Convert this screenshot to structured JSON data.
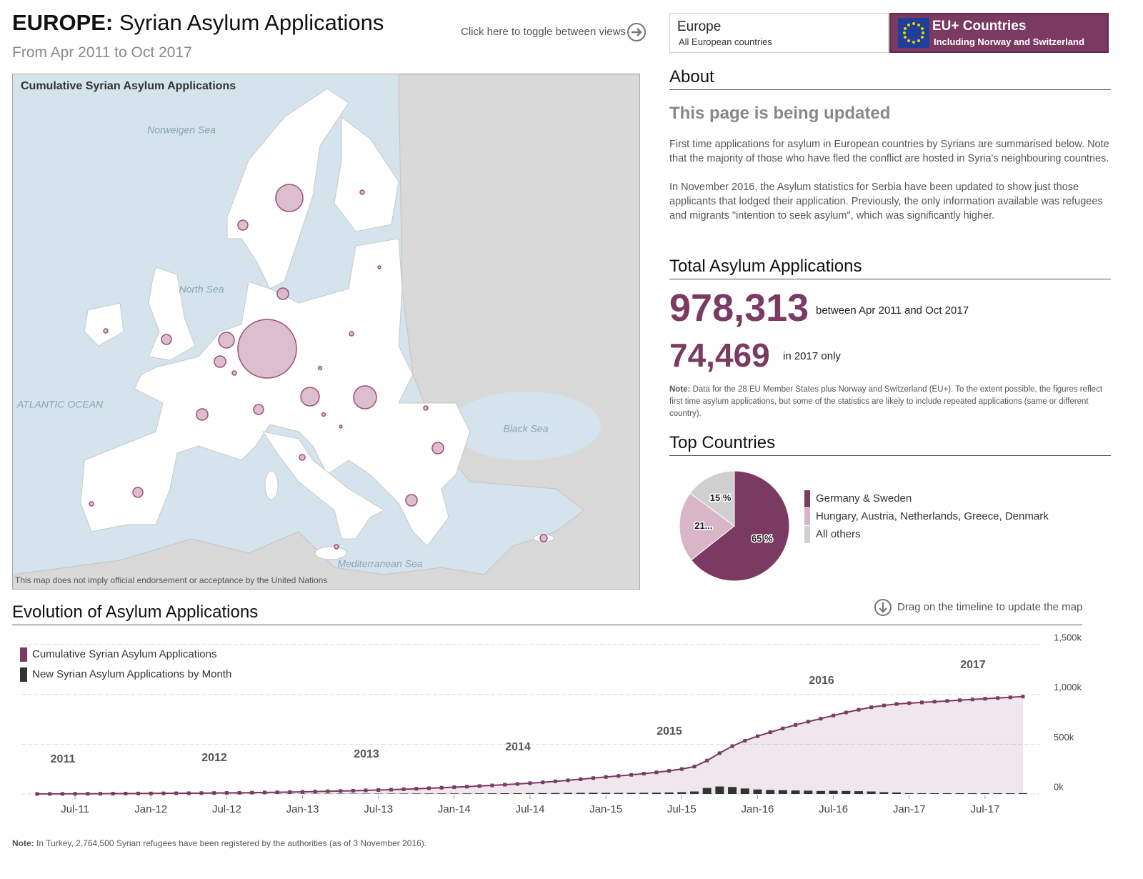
{
  "header": {
    "title_bold": "EUROPE:",
    "title": "Syrian Asylum Applications",
    "subtitle": "From Apr 2011 to Oct 2017",
    "toggle_hint": "Click here to toggle between views"
  },
  "tabs": [
    {
      "title": "Europe",
      "subtitle": "All European countries"
    },
    {
      "title": "EU+ Countries",
      "subtitle": "Including Norway and Switzerland"
    }
  ],
  "map": {
    "title": "Cumulative Syrian Asylum Applications",
    "labels": [
      "Norweigen Sea",
      "North Sea",
      "ATLANTIC OCEAN",
      "Black Sea",
      "Mediterranean Sea"
    ],
    "disclaimer": "This map does not imply official endorsement or acceptance by the United Nations",
    "bubble_values": [
      520000,
      112000,
      79000,
      52000,
      37000,
      20000,
      20000,
      15000,
      20000,
      15000,
      15000,
      15000,
      20000,
      20000,
      5000,
      7700,
      2800,
      2800,
      2800,
      2800,
      2800,
      2800,
      1900,
      2800,
      1900,
      1200,
      1200
    ]
  },
  "about": {
    "heading": "About",
    "subheading": "This page is being updated",
    "paragraphs": [
      "First time applications for asylum in European countries by Syrians are summarised below. Note that the majority of those who have fled the conflict are hosted in Syria's neighbouring countries.",
      "In November 2016, the Asylum statistics for Serbia have been updated to show just those applicants that lodged their application. Previously, the only information available was refugees and migrants \"intention to seek asylum\", which was significantly higher."
    ]
  },
  "totals": {
    "heading": "Total Asylum Applications",
    "total": "978,313",
    "total_label": "between Apr 2011 and Oct 2017",
    "year_total": "74,469",
    "year_label": "in 2017 only",
    "note_label": "Note:",
    "note": "Data for the 28 EU Member States plus Norway and Switzerland (EU+). To the extent possible, the figures reflect first time asylum applications, but some of the statistics are likely to include repeated applications (same or different country)."
  },
  "timeline_hint": "Drag on the timeline to update the map",
  "footer": {
    "note_label": "Note:",
    "note": "In Turkey, 2,764,500 Syrian refugees have been registered by the authorities (as of 3 November 2016)."
  },
  "chart_data": [
    {
      "type": "pie",
      "title": "Top Countries",
      "categories": [
        "Germany & Sweden",
        "Hungary, Austria, Netherlands, Greece, Denmark",
        "All others"
      ],
      "values": [
        65,
        21,
        15
      ],
      "value_labels": [
        "65 %",
        "21...",
        "15 %"
      ],
      "colors": [
        "#7b3a62",
        "#d8b6c8",
        "#cfcfcf"
      ]
    },
    {
      "type": "line",
      "title": "Evolution of Asylum Applications",
      "categories": [
        null,
        null,
        null,
        "Jul-11",
        null,
        null,
        null,
        null,
        null,
        "Jan-12",
        null,
        null,
        null,
        null,
        null,
        "Jul-12",
        null,
        null,
        null,
        null,
        null,
        "Jan-13",
        null,
        null,
        null,
        null,
        null,
        "Jul-13",
        null,
        null,
        null,
        null,
        null,
        "Jan-14",
        null,
        null,
        null,
        null,
        null,
        "Jul-14",
        null,
        null,
        null,
        null,
        null,
        "Jan-15",
        null,
        null,
        null,
        null,
        null,
        "Jul-15",
        null,
        null,
        null,
        null,
        null,
        "Jan-16",
        null,
        null,
        null,
        null,
        null,
        "Jul-16",
        null,
        null,
        null,
        null,
        null,
        "Jan-17",
        null,
        null,
        null,
        null,
        null,
        "Jul-17",
        null,
        null,
        null
      ],
      "series": [
        {
          "name": "Cumulative Syrian Asylum Applications",
          "color": "#7b3a62",
          "values": [
            300,
            650,
            1050,
            1500,
            2000,
            2550,
            3150,
            3800,
            4500,
            5200,
            5950,
            6750,
            7600,
            8500,
            9500,
            10600,
            11900,
            13400,
            15100,
            17000,
            19100,
            21400,
            23900,
            26600,
            29500,
            32600,
            35900,
            39400,
            43300,
            47600,
            52300,
            57300,
            62500,
            67900,
            73500,
            79500,
            86000,
            93000,
            100500,
            108500,
            117000,
            126500,
            137000,
            148000,
            159500,
            170500,
            181000,
            192000,
            204000,
            217000,
            232000,
            250000,
            275000,
            335000,
            410000,
            480000,
            535000,
            580000,
            620000,
            658000,
            693000,
            726000,
            756000,
            788000,
            818000,
            846000,
            871000,
            889000,
            903844,
            911844,
            919344,
            926844,
            934344,
            941844,
            949044,
            956244,
            963444,
            970444,
            978313
          ]
        },
        {
          "name": "New Syrian Asylum Applications by Month",
          "color": "#333333",
          "values": [
            300,
            350,
            400,
            450,
            500,
            550,
            600,
            650,
            700,
            700,
            750,
            800,
            850,
            900,
            1000,
            1100,
            1300,
            1500,
            1700,
            1900,
            2100,
            2300,
            2500,
            2700,
            2900,
            3100,
            3300,
            3500,
            3900,
            4300,
            4700,
            5000,
            5200,
            5400,
            5600,
            6000,
            6500,
            7000,
            7500,
            8000,
            8500,
            9500,
            10500,
            11000,
            11500,
            11000,
            10500,
            11000,
            12000,
            13000,
            15000,
            18000,
            25000,
            60000,
            75000,
            70000,
            55000,
            45000,
            40000,
            38000,
            35000,
            33000,
            30000,
            32000,
            30000,
            28000,
            25000,
            18000,
            14844,
            8000,
            7500,
            7500,
            7500,
            7500,
            7200,
            7200,
            7200,
            7000,
            7869
          ]
        }
      ],
      "ylim": [
        0,
        1500000
      ],
      "yticks": [
        {
          "value": 0,
          "label": "0k"
        },
        {
          "value": 500000,
          "label": "500k"
        },
        {
          "value": 1000000,
          "label": "1,000k"
        },
        {
          "value": 1500000,
          "label": "1,500k"
        }
      ],
      "grid": true,
      "annotations": [
        "2011",
        "2012",
        "2013",
        "2014",
        "2015",
        "2016",
        "2017"
      ]
    }
  ]
}
